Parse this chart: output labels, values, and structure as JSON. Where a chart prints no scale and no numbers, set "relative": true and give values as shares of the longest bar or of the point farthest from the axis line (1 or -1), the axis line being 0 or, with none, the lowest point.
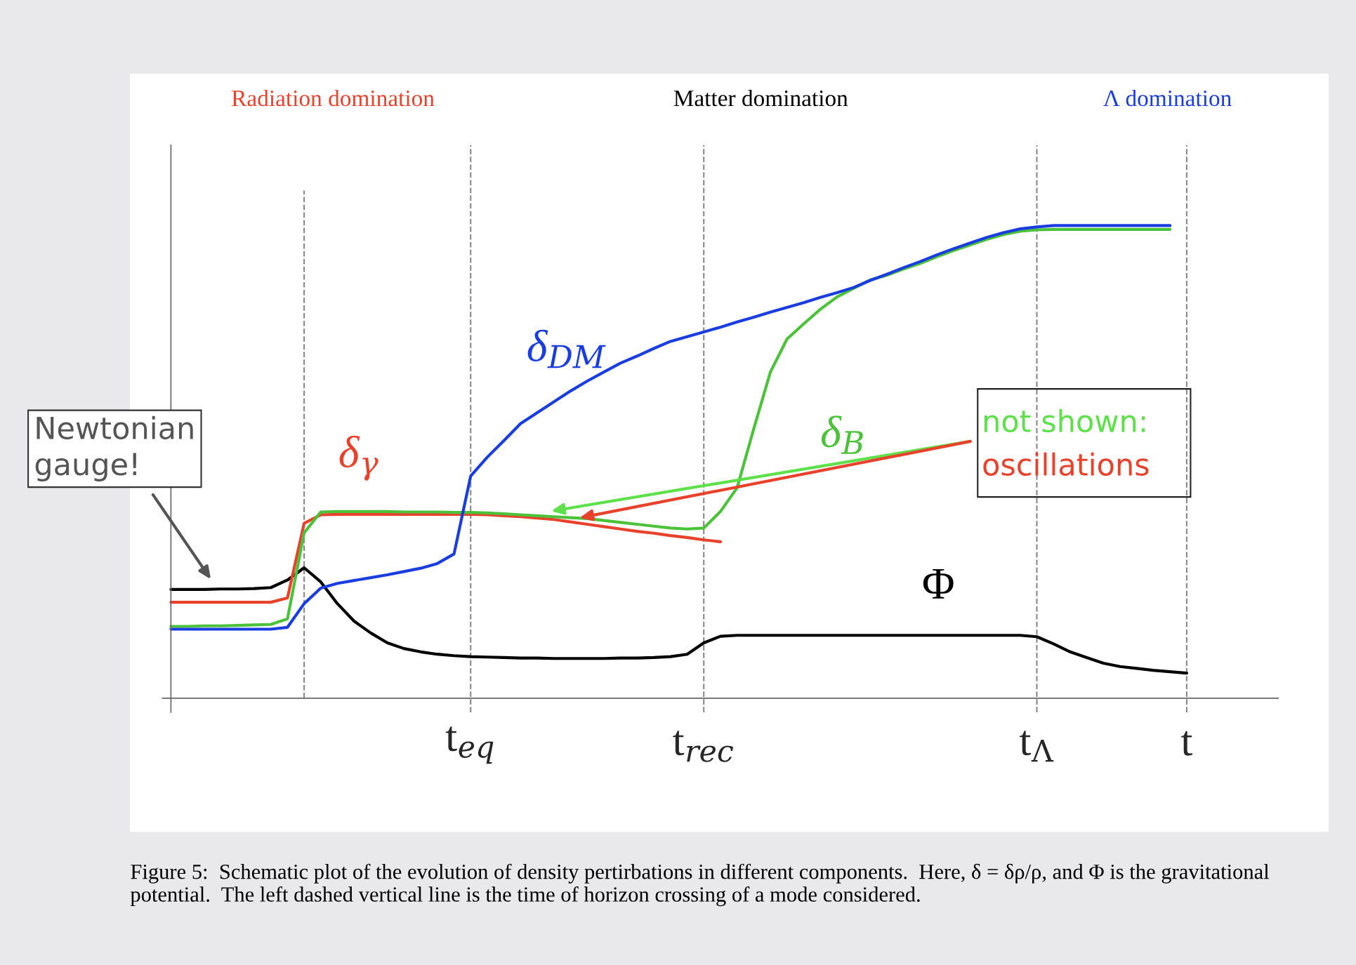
{
  "chart_data": {
    "type": "line",
    "relative": true,
    "categories": [
      null,
      null,
      null,
      null,
      null,
      null,
      null,
      null,
      null,
      null,
      null,
      null,
      null,
      null,
      null,
      null,
      null,
      null,
      "t$_{eq}$",
      null,
      null,
      null,
      null,
      null,
      null,
      null,
      null,
      null,
      null,
      null,
      null,
      null,
      "t$_{rec}$",
      null,
      null,
      null,
      null,
      null,
      null,
      null,
      null,
      null,
      null,
      null,
      null,
      null,
      null,
      null,
      null,
      null,
      null,
      null,
      "t$_{Λ}$",
      null,
      null,
      null,
      null,
      null,
      null,
      null,
      null,
      "t",
      null
    ],
    "series": [
      {
        "color": "#000000",
        "values": [
          0.23,
          0.23,
          0.23,
          0.231,
          0.231,
          0.232,
          0.234,
          0.25,
          0.276,
          0.246,
          0.2,
          0.163,
          0.138,
          0.117,
          0.105,
          0.098,
          0.093,
          0.09,
          0.088,
          0.087,
          0.086,
          0.085,
          0.085,
          0.084,
          0.084,
          0.084,
          0.084,
          0.085,
          0.085,
          0.086,
          0.088,
          0.093,
          0.117,
          0.131,
          0.133,
          0.133,
          0.133,
          0.133,
          0.133,
          0.133,
          0.133,
          0.133,
          0.133,
          0.133,
          0.133,
          0.133,
          0.133,
          0.133,
          0.133,
          0.133,
          0.133,
          0.133,
          0.13,
          0.115,
          0.098,
          0.086,
          0.074,
          0.067,
          0.063,
          0.059,
          0.056,
          0.053,
          null
        ]
      },
      {
        "color": "#e8412c",
        "values": [
          0.203,
          0.203,
          0.203,
          0.203,
          0.203,
          0.203,
          0.203,
          0.212,
          0.37,
          0.388,
          0.389,
          0.389,
          0.389,
          0.389,
          0.389,
          0.389,
          0.389,
          0.389,
          0.389,
          0.388,
          0.386,
          0.384,
          0.381,
          0.378,
          0.373,
          0.368,
          0.363,
          0.358,
          0.353,
          0.349,
          0.344,
          0.34,
          0.335,
          0.331,
          null,
          null,
          null,
          null,
          null,
          null,
          null,
          null,
          null,
          null,
          null,
          null,
          null,
          null,
          null,
          null,
          null,
          null,
          null,
          null,
          null,
          null,
          null,
          null,
          null,
          null,
          null,
          null,
          null
        ]
      },
      {
        "color": "#4cc23a",
        "values": [
          0.152,
          0.152,
          0.153,
          0.153,
          0.154,
          0.155,
          0.156,
          0.168,
          0.35,
          0.394,
          0.395,
          0.395,
          0.395,
          0.395,
          0.394,
          0.394,
          0.394,
          0.393,
          0.393,
          0.392,
          0.39,
          0.388,
          0.386,
          0.384,
          0.382,
          0.38,
          0.376,
          0.372,
          0.368,
          0.364,
          0.36,
          0.358,
          0.36,
          0.395,
          0.445,
          0.57,
          0.69,
          0.76,
          0.792,
          0.823,
          0.849,
          0.867,
          0.885,
          0.895,
          0.908,
          0.92,
          0.934,
          0.947,
          0.959,
          0.971,
          0.981,
          0.988,
          0.991,
          0.992,
          0.992,
          0.992,
          0.992,
          0.992,
          0.992,
          0.992,
          0.992,
          null,
          null
        ]
      },
      {
        "color": "#1a3de0",
        "values": [
          0.146,
          0.146,
          0.146,
          0.146,
          0.146,
          0.146,
          0.146,
          0.15,
          0.2,
          0.233,
          0.243,
          0.249,
          0.255,
          0.261,
          0.268,
          0.275,
          0.285,
          0.305,
          0.47,
          0.51,
          0.545,
          0.581,
          0.604,
          0.627,
          0.65,
          0.671,
          0.69,
          0.709,
          0.724,
          0.74,
          0.755,
          0.765,
          0.775,
          0.785,
          0.796,
          0.806,
          0.817,
          0.827,
          0.837,
          0.848,
          0.858,
          0.869,
          0.884,
          0.897,
          0.911,
          0.924,
          0.938,
          0.951,
          0.963,
          0.975,
          0.985,
          0.993,
          0.997,
          1.0,
          1.0,
          1.0,
          1.0,
          1.0,
          1.0,
          1.0,
          1.0,
          null,
          null
        ]
      }
    ],
    "annotations": [
      "Radiation domination",
      "Matter domination",
      "Λ domination",
      "δ$_{γ}$",
      "δ$_{DM}$",
      "δ$_{B}$",
      "Φ",
      "Newtonian\ngauge!",
      "not shown:",
      "oscillations",
      "Figure 5:  Schematic plot of the evolution of density pertirbations in different components.  Here, δ = δρ/ρ, and Φ is the gravitational potential.  The left dashed vertical line is the time of horizon crossing of a mode considered."
    ],
    "grid": "x",
    "legend": false
  }
}
